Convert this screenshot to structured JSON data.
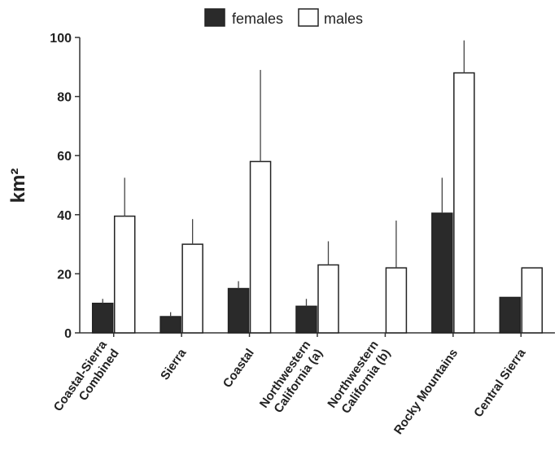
{
  "chart_data": {
    "type": "bar",
    "title": "",
    "xlabel": "",
    "ylabel": "km²",
    "ylim": [
      0,
      100
    ],
    "yticks": [
      0,
      20,
      40,
      60,
      80,
      100
    ],
    "grid": false,
    "legend_position": "top-center",
    "categories": [
      "Coastal-Sierra Combined",
      "Sierra",
      "Coastal",
      "Northwestern California (a)",
      "Northwestern California (b)",
      "Rocky Mountains",
      "Central Sierra"
    ],
    "category_lines": [
      [
        "Coastal-Sierra",
        "Combined"
      ],
      [
        "Sierra"
      ],
      [
        "Coastal"
      ],
      [
        "Northwestern",
        "California (a)"
      ],
      [
        "Northwestern",
        "California (b)"
      ],
      [
        "Rocky Mountains"
      ],
      [
        "Central Sierra"
      ]
    ],
    "series": [
      {
        "name": "females",
        "color": "#2a2a2a",
        "values": [
          10,
          5.5,
          15,
          9,
          null,
          40.5,
          12
        ],
        "error": [
          1.5,
          1.5,
          2.5,
          2.5,
          null,
          12,
          null
        ]
      },
      {
        "name": "males",
        "color": "#ffffff",
        "values": [
          39.5,
          30,
          58,
          23,
          22,
          88,
          22
        ],
        "error": [
          13,
          8.5,
          31,
          8,
          16,
          11,
          null
        ]
      }
    ]
  }
}
